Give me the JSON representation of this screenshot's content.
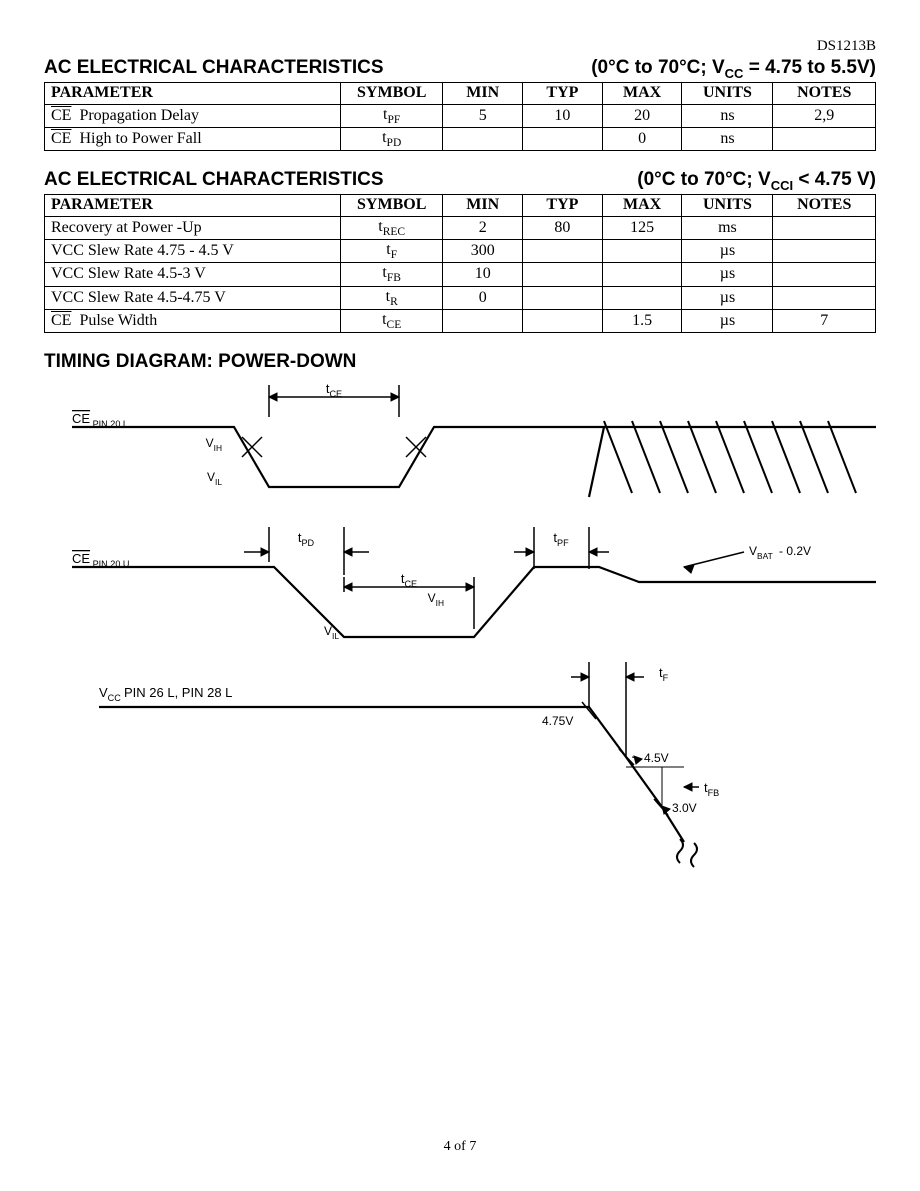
{
  "part_number": "DS1213B",
  "page_footer": "4 of 7",
  "table1": {
    "title_left": "AC ELECTRICAL CHARACTERISTICS",
    "title_right": "(0°C to 70°C; V<sub>CC</sub> = 4.75 to 5.5V)",
    "headers": [
      "PARAMETER",
      "SYMBOL",
      "MIN",
      "TYP",
      "MAX",
      "UNITS",
      "NOTES"
    ],
    "rows": [
      {
        "param": "<span class='overline'>CE</span>&nbsp; Propagation Delay",
        "symbol": "t<sub>PF</sub>",
        "min": "5",
        "typ": "10",
        "max": "20",
        "units": "ns",
        "notes": "2,9"
      },
      {
        "param": "<span class='overline'>CE</span>&nbsp; High to Power Fall",
        "symbol": "t<sub>PD</sub>",
        "min": "",
        "typ": "",
        "max": "0",
        "units": "ns",
        "notes": ""
      }
    ]
  },
  "table2": {
    "title_left": "AC ELECTRICAL CHARACTERISTICS",
    "title_right": "(0°C to 70°C; V<sub>CCI</sub> < 4.75 V)",
    "headers": [
      "PARAMETER",
      "SYMBOL",
      "MIN",
      "TYP",
      "MAX",
      "UNITS",
      "NOTES"
    ],
    "rows": [
      {
        "param": "Recovery at Power -Up",
        "symbol": "t<sub>REC</sub>",
        "min": "2",
        "typ": "80",
        "max": "125",
        "units": "ms",
        "notes": ""
      },
      {
        "param": "VCC Slew Rate 4.75 - 4.5 V",
        "symbol": "t<sub>F</sub>",
        "min": "300",
        "typ": "",
        "max": "",
        "units": "µs",
        "notes": ""
      },
      {
        "param": "VCC Slew Rate 4.5-3 V",
        "symbol": "t<sub>FB</sub>",
        "min": "10",
        "typ": "",
        "max": "",
        "units": "µs",
        "notes": ""
      },
      {
        "param": "VCC Slew Rate 4.5-4.75 V",
        "symbol": "t<sub>R</sub>",
        "min": "0",
        "typ": "",
        "max": "",
        "units": "µs",
        "notes": ""
      },
      {
        "param": "<span class='overline'>CE</span>&nbsp; Pulse Width",
        "symbol": "t<sub>CE</sub>",
        "min": "",
        "typ": "",
        "max": "1.5",
        "units": "µs",
        "notes": "7"
      }
    ]
  },
  "diagram": {
    "title": "TIMING DIAGRAM: POWER-DOWN",
    "stroke_color": "#000000",
    "stroke_width": 2,
    "font_family": "Arial, Helvetica, sans-serif",
    "labels": {
      "row1": "CE PIN 20 L",
      "row2": "CE PIN 20 U",
      "row3": "V_CC PIN 26 L, PIN 28 L",
      "vih": "V_IH",
      "vil": "V_IL",
      "tce": "t_CE",
      "tpd": "t_PD",
      "tpf": "t_PF",
      "tf": "t_F",
      "tfb": "t_FB",
      "vbat": "V_BAT - 0.2V",
      "v475": "4.75V",
      "v45": "4.5V",
      "v30": "3.0V"
    }
  }
}
